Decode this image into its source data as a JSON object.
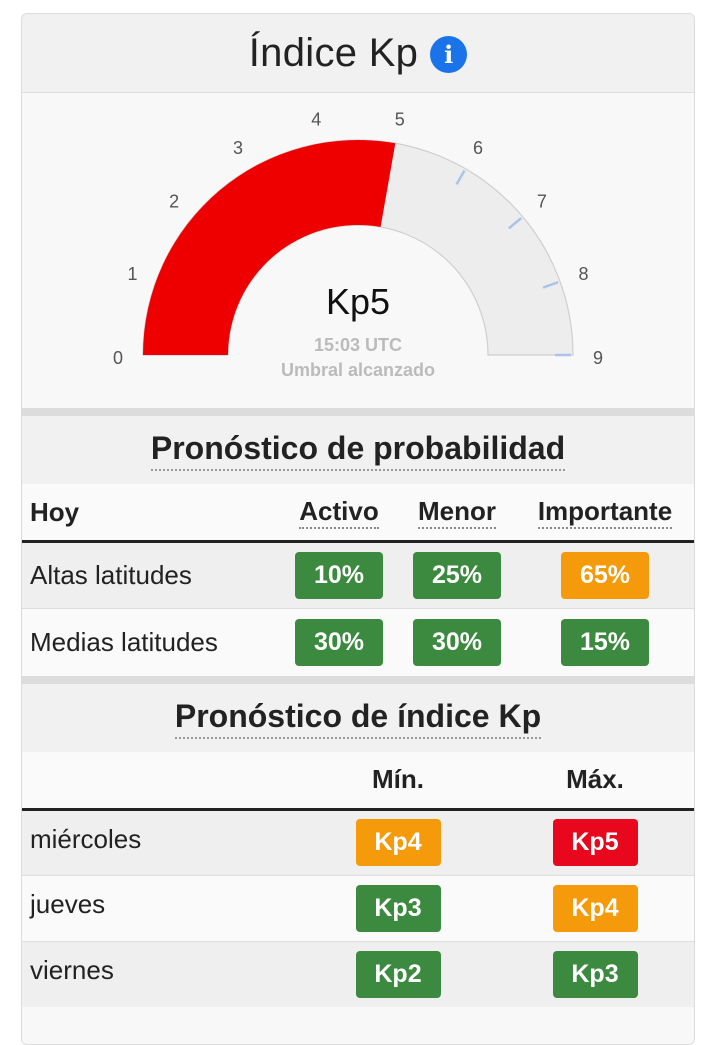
{
  "header": {
    "title": "Índice Kp",
    "info_icon": "info-icon"
  },
  "gauge": {
    "value_label": "Kp5",
    "value": 5,
    "min": 0,
    "max": 9,
    "ticks": [
      "0",
      "1",
      "2",
      "3",
      "4",
      "5",
      "6",
      "7",
      "8",
      "9"
    ],
    "time": "15:03 UTC",
    "status": "Umbral alcanzado",
    "fill_color": "#ee0000",
    "track_color": "#ededed"
  },
  "probability": {
    "title": "Pronóstico de probabilidad",
    "columns": [
      "Hoy",
      "Activo",
      "Menor",
      "Importante"
    ],
    "rows": [
      {
        "label": "Altas latitudes",
        "values": [
          "10%",
          "25%",
          "65%"
        ]
      },
      {
        "label": "Medias latitudes",
        "values": [
          "30%",
          "30%",
          "15%"
        ]
      }
    ]
  },
  "kp_forecast": {
    "title": "Pronóstico de índice Kp",
    "columns": [
      "",
      "Mín.",
      "Máx."
    ],
    "rows": [
      {
        "label": "miércoles",
        "min": "Kp4",
        "max": "Kp5"
      },
      {
        "label": "jueves",
        "min": "Kp3",
        "max": "Kp4"
      },
      {
        "label": "viernes",
        "min": "Kp2",
        "max": "Kp3"
      }
    ]
  },
  "colors": {
    "green": "#3c8a3f",
    "orange": "#f59a0a",
    "red": "#e8071d"
  }
}
